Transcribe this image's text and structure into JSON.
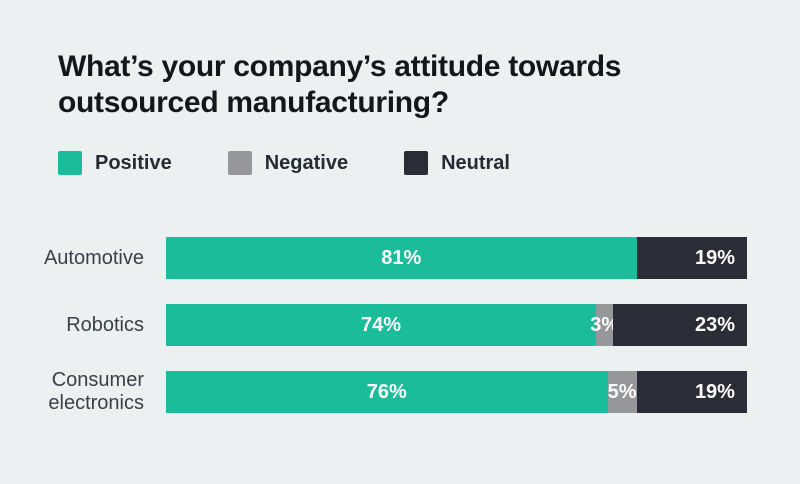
{
  "background": "#edf0f1",
  "chart_data": {
    "type": "bar",
    "orientation": "horizontal",
    "stacked": true,
    "title": "What’s your company’s attitude towards\noutsourced manufacturing?",
    "categories": [
      "Automotive",
      "Robotics",
      "Consumer electronics"
    ],
    "series": [
      {
        "name": "Positive",
        "color": "#1bbc9a",
        "values": [
          81,
          74,
          76
        ]
      },
      {
        "name": "Negative",
        "color": "#96979a",
        "values": [
          0,
          3,
          5
        ]
      },
      {
        "name": "Neutral",
        "color": "#2a2d36",
        "values": [
          19,
          23,
          19
        ]
      }
    ],
    "value_suffix": "%",
    "xlim": [
      0,
      100
    ],
    "legend_position": "top-left",
    "value_labels": "inside",
    "grid": false,
    "title_color": "#14171a",
    "bar_label_color": "#ffffff"
  }
}
